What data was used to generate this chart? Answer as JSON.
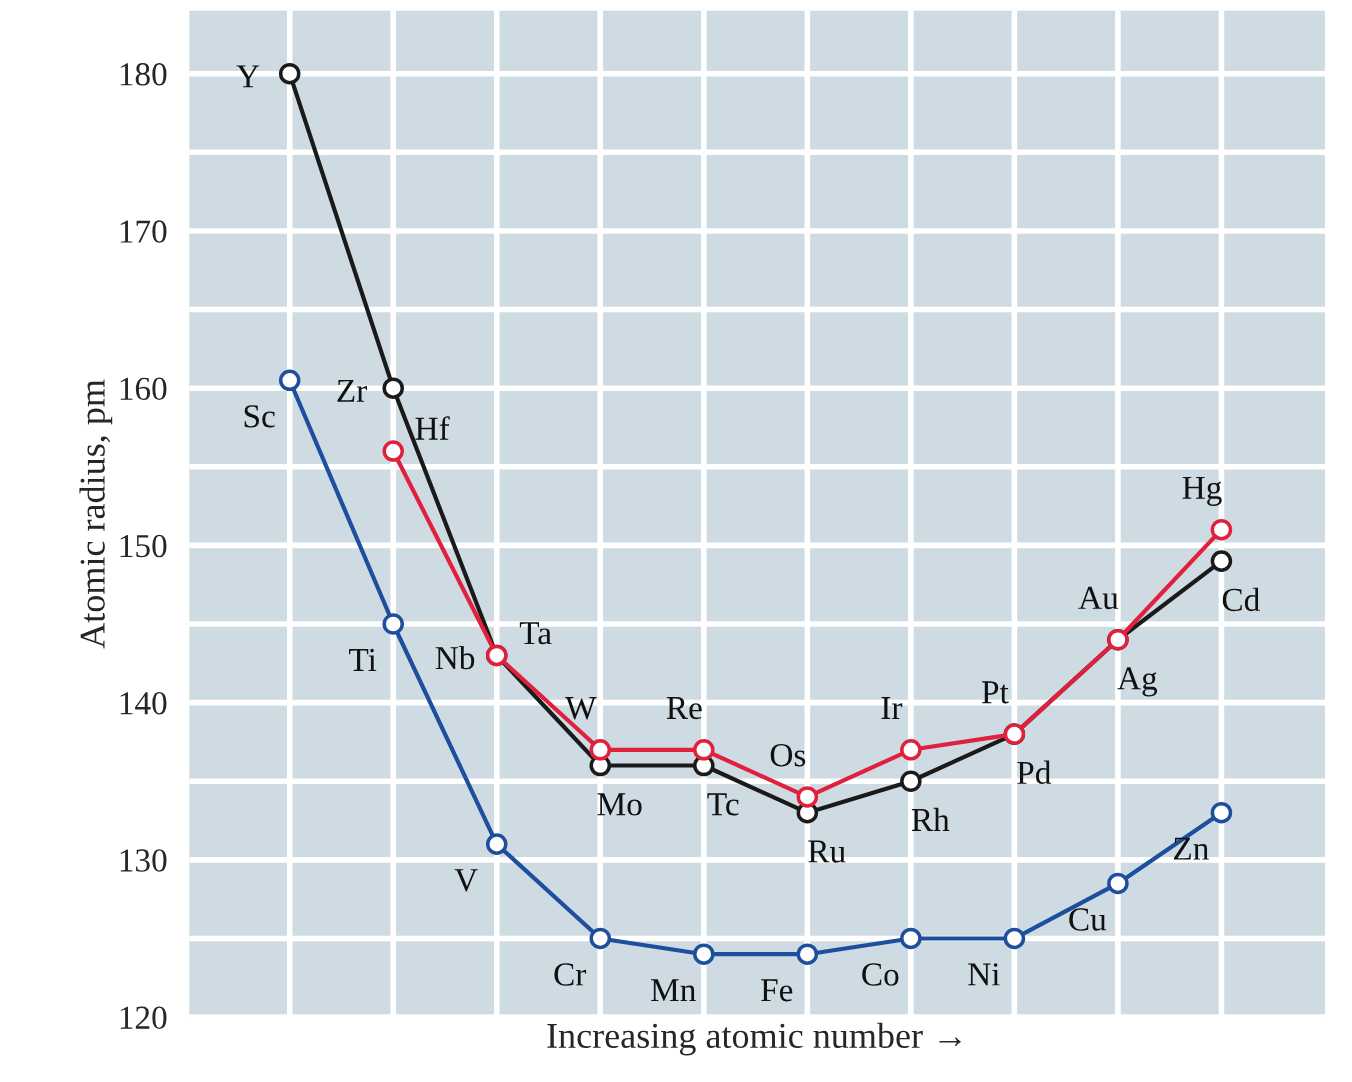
{
  "chart_data": {
    "type": "line",
    "ylabel": "Atomic radius, pm",
    "xlabel": "Increasing atomic number →",
    "categories": [
      null,
      null,
      null,
      null,
      null,
      null,
      null,
      null,
      null,
      null
    ],
    "series": [
      {
        "color": "#1d4f9e",
        "values": [
          160.5,
          145,
          131,
          125,
          124,
          124,
          125,
          125,
          128.5,
          133
        ],
        "value_labels": [
          "Sc",
          "Ti",
          "V",
          "Cr",
          "Mn",
          "Fe",
          "Co",
          "Ni",
          "Cu",
          "Zn"
        ]
      },
      {
        "color": "#1a1a1a",
        "values": [
          180,
          160,
          143,
          136,
          136,
          133,
          135,
          138,
          144,
          149
        ],
        "value_labels": [
          "Y",
          "Zr",
          "Nb",
          "Mo",
          "Tc",
          "Ru",
          "Rh",
          "Pd",
          "Ag",
          "Cd"
        ]
      },
      {
        "color": "#e0203c",
        "values": [
          null,
          156,
          143,
          137,
          137,
          134,
          137,
          138,
          144,
          151
        ],
        "value_labels": [
          null,
          "Hf",
          "Ta",
          "W",
          "Re",
          "Os",
          "Ir",
          "Pt",
          "Au",
          "Hg"
        ]
      }
    ],
    "ylim": [
      120,
      184
    ],
    "yticks": [
      120,
      {
        "value": 125,
        "label": null
      },
      130,
      {
        "value": 135,
        "label": null
      },
      140,
      {
        "value": 145,
        "label": null
      },
      150,
      {
        "value": 155,
        "label": null
      },
      160,
      {
        "value": 165,
        "label": null
      },
      170,
      {
        "value": 175,
        "label": null
      },
      180
    ],
    "grid": true,
    "marker": "circle",
    "line_style": "solid",
    "tick_labels": "y"
  }
}
